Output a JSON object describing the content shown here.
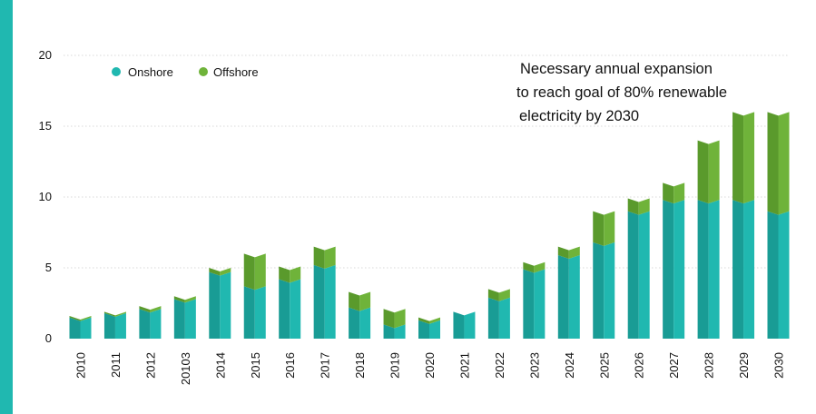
{
  "colors": {
    "accent_bar": "#20b8b0",
    "onshore": "#20b8b0",
    "onshore_dark": "#199c95",
    "offshore": "#6fb33a",
    "offshore_dark": "#5a9a2c",
    "grid": "#d8d8d8"
  },
  "chart_data": {
    "type": "bar",
    "stacked": true,
    "style": "3d-prism",
    "categories": [
      "2010",
      "2011",
      "2012",
      "20103",
      "2014",
      "2015",
      "2016",
      "2017",
      "2018",
      "2019",
      "2020",
      "2021",
      "2022",
      "2023",
      "2024",
      "2025",
      "2026",
      "2027",
      "2028",
      "2029",
      "2030"
    ],
    "series": [
      {
        "name": "Onshore",
        "values": [
          1.5,
          1.8,
          2.1,
          2.8,
          4.7,
          3.7,
          4.2,
          5.2,
          2.2,
          1.0,
          1.3,
          1.9,
          2.9,
          4.9,
          5.9,
          6.8,
          9.0,
          9.8,
          9.8,
          9.8,
          9.0
        ]
      },
      {
        "name": "Offshore",
        "values": [
          0.1,
          0.1,
          0.2,
          0.2,
          0.3,
          2.3,
          0.9,
          1.3,
          1.1,
          1.1,
          0.2,
          0.0,
          0.6,
          0.5,
          0.6,
          2.2,
          0.9,
          1.2,
          4.2,
          6.2,
          7.0
        ]
      }
    ],
    "ylim": [
      0,
      20
    ],
    "yticks": [
      0,
      5,
      10,
      15,
      20
    ],
    "grid": true,
    "legend_placement": "top-left",
    "annotation": [
      "Necessary annual expansion",
      "to reach goal of 80% renewable",
      "electricity by 2030"
    ]
  }
}
